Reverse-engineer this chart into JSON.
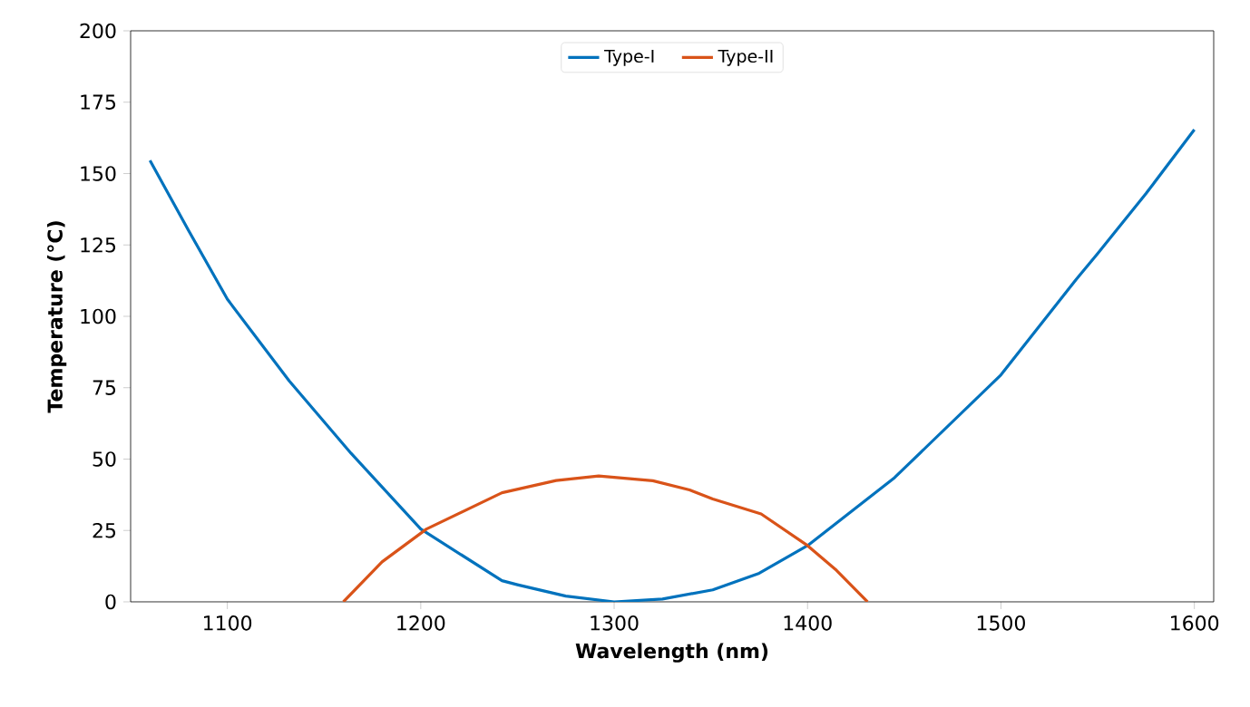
{
  "chart_data": {
    "type": "line",
    "xlabel": "Wavelength (nm)",
    "ylabel": "Temperature (°C)",
    "xlim": [
      1050,
      1610
    ],
    "ylim": [
      0,
      200
    ],
    "xticks": [
      1100,
      1200,
      1300,
      1400,
      1500,
      1600
    ],
    "yticks": [
      0,
      25,
      50,
      75,
      100,
      125,
      150,
      175,
      200
    ],
    "legend": "top",
    "grid": false,
    "marker": "none",
    "line_style": "solid",
    "series": [
      {
        "name": "Type-I",
        "color": "#0072bd",
        "x": [
          1060,
          1080,
          1100,
          1132,
          1148,
          1164,
          1200,
          1242,
          1250,
          1275,
          1300,
          1325,
          1351,
          1375,
          1400,
          1445,
          1500,
          1539,
          1550,
          1575,
          1600
        ],
        "values": [
          154.6,
          130,
          106,
          77.4,
          64.7,
          52,
          25.5,
          7.4,
          6,
          2,
          0,
          1,
          4.2,
          10,
          19.7,
          43.5,
          79.5,
          113,
          122,
          143,
          165.4
        ]
      },
      {
        "name": "Type-II",
        "color": "#d95319",
        "x": [
          1160,
          1180,
          1203,
          1242,
          1270,
          1292,
          1320,
          1339,
          1351,
          1376,
          1400,
          1415,
          1431
        ],
        "values": [
          0,
          14,
          25.5,
          38.2,
          42.5,
          44.1,
          42.4,
          39.2,
          36,
          30.8,
          19.7,
          11,
          0
        ]
      }
    ]
  }
}
